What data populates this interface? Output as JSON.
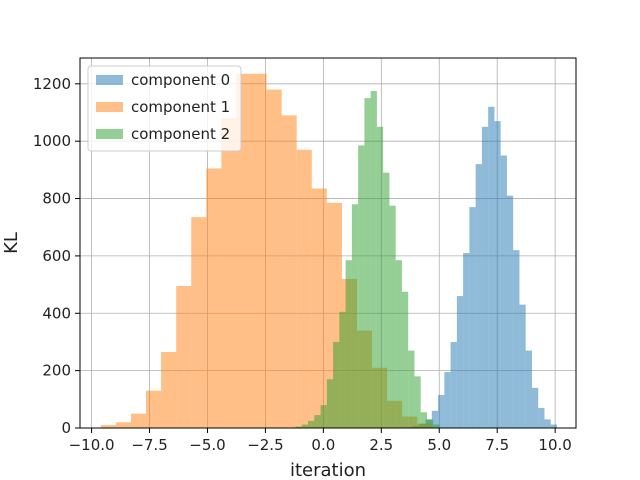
{
  "chart_data": {
    "type": "histogram",
    "xlabel": "iteration",
    "ylabel": "KL",
    "xlim": [
      -10.5,
      10.9
    ],
    "ylim": [
      0,
      1290
    ],
    "xticks": [
      -10.0,
      -7.5,
      -5.0,
      -2.5,
      0.0,
      2.5,
      5.0,
      7.5,
      10.0
    ],
    "xtick_labels": [
      "−10.0",
      "−7.5",
      "−5.0",
      "−2.5",
      "0.0",
      "2.5",
      "5.0",
      "7.5",
      "10.0"
    ],
    "yticks": [
      0,
      200,
      400,
      600,
      800,
      1000,
      1200
    ],
    "ytick_labels": [
      "0",
      "200",
      "400",
      "600",
      "800",
      "1000",
      "1200"
    ],
    "grid": true,
    "legend_position": "top-left",
    "series": [
      {
        "name": "component 0",
        "color": "#1f77b4",
        "alpha": 0.5,
        "edges": [
          3.6,
          3.87,
          4.14,
          4.41,
          4.68,
          4.95,
          5.22,
          5.49,
          5.76,
          6.03,
          6.3,
          6.57,
          6.84,
          7.11,
          7.38,
          7.65,
          7.92,
          8.19,
          8.46,
          8.73,
          9.0,
          9.27,
          9.54,
          9.81,
          10.08
        ],
        "counts": [
          3,
          7,
          15,
          30,
          60,
          115,
          195,
          300,
          460,
          610,
          770,
          920,
          1050,
          1120,
          1070,
          950,
          810,
          620,
          430,
          270,
          140,
          70,
          30,
          12
        ]
      },
      {
        "name": "component 1",
        "color": "#ff7f0e",
        "alpha": 0.5,
        "edges": [
          -9.6,
          -8.95,
          -8.3,
          -7.65,
          -7.0,
          -6.35,
          -5.7,
          -5.05,
          -4.4,
          -3.75,
          -3.1,
          -2.45,
          -1.8,
          -1.15,
          -0.5,
          0.15,
          0.8,
          1.45,
          2.1,
          2.75,
          3.4,
          4.05,
          4.7
        ],
        "counts": [
          10,
          20,
          50,
          130,
          265,
          495,
          735,
          905,
          1080,
          1235,
          1235,
          1180,
          1090,
          970,
          835,
          785,
          520,
          340,
          210,
          95,
          40,
          15
        ]
      },
      {
        "name": "component 2",
        "color": "#2ca02c",
        "alpha": 0.5,
        "edges": [
          -1.2,
          -0.93,
          -0.66,
          -0.39,
          -0.12,
          0.15,
          0.42,
          0.69,
          0.96,
          1.23,
          1.5,
          1.77,
          2.04,
          2.31,
          2.58,
          2.85,
          3.12,
          3.39,
          3.66,
          3.93,
          4.2,
          4.47,
          4.74,
          5.01
        ],
        "counts": [
          5,
          12,
          25,
          45,
          80,
          170,
          300,
          405,
          585,
          780,
          985,
          1150,
          1175,
          1050,
          890,
          775,
          585,
          475,
          270,
          180,
          55,
          30,
          12
        ]
      }
    ]
  }
}
